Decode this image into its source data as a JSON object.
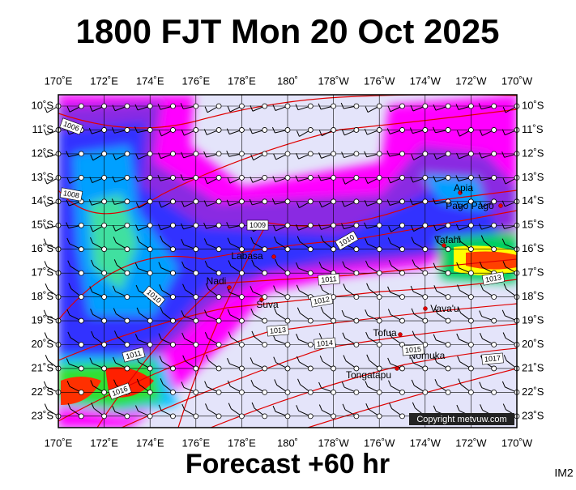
{
  "header": {
    "title": "1800 FJT Mon 20 Oct 2025"
  },
  "footer": {
    "subtitle": "Forecast +60 hr",
    "code": "IM2"
  },
  "map": {
    "lon_labels": [
      "170˚E",
      "172˚E",
      "174˚E",
      "176˚E",
      "178˚E",
      "180˚",
      "178˚W",
      "176˚W",
      "174˚W",
      "172˚W",
      "170˚W"
    ],
    "lat_labels": [
      "10˚S",
      "11˚S",
      "12˚S",
      "13˚S",
      "14˚S",
      "15˚S",
      "16˚S",
      "17˚S",
      "18˚S",
      "19˚S",
      "20˚S",
      "21˚S",
      "22˚S",
      "23˚S"
    ],
    "places": [
      {
        "label": "Apia"
      },
      {
        "label": "Pago Pago"
      },
      {
        "label": "Tafahi"
      },
      {
        "label": "Labasa"
      },
      {
        "label": "Nadi"
      },
      {
        "label": "Suva"
      },
      {
        "label": "Vava'u"
      },
      {
        "label": "Tofua"
      },
      {
        "label": "Nomuka"
      },
      {
        "label": "Tongatapu"
      }
    ],
    "isobar_labels": [
      1006,
      1008,
      1009,
      1010,
      1010,
      1011,
      1012,
      1013,
      1013,
      1014,
      1015,
      1016,
      1017,
      1011
    ],
    "copyright": "Copyright metvuw.com"
  }
}
